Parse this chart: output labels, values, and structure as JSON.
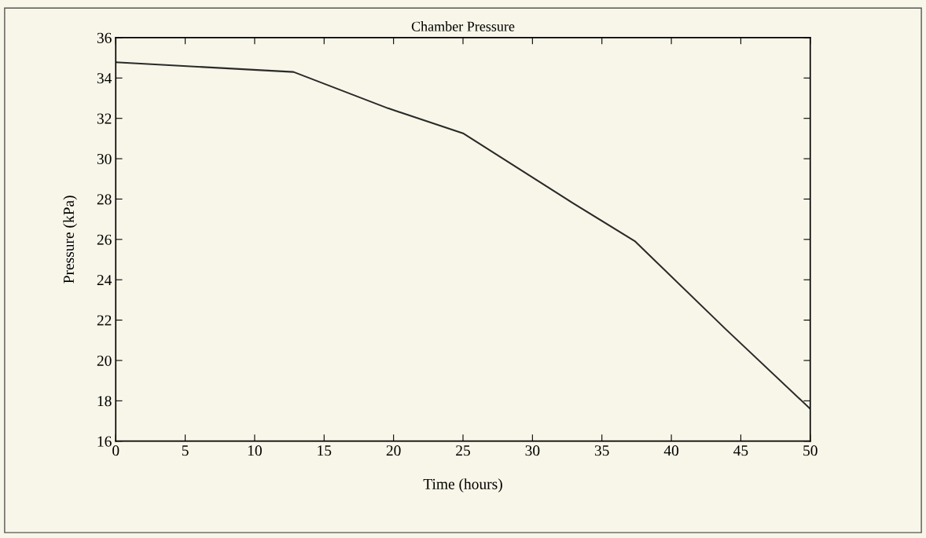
{
  "chart_data": {
    "type": "line",
    "title": "Chamber Pressure",
    "xlabel": "Time (hours)",
    "ylabel": "Pressure (kPa)",
    "x": [
      0,
      12.8,
      19.6,
      25.0,
      32.8,
      37.4,
      43.9,
      50
    ],
    "series": [
      {
        "color": "#2a2a2a",
        "values": [
          34.78,
          34.3,
          32.5,
          31.26,
          27.85,
          25.9,
          21.56,
          17.6
        ]
      }
    ],
    "xlim": [
      0,
      50
    ],
    "xticks": [
      0,
      5,
      10,
      15,
      20,
      25,
      30,
      35,
      40,
      45,
      50
    ],
    "ylim": [
      16,
      36
    ],
    "yticks": [
      16,
      18,
      20,
      22,
      24,
      26,
      28,
      30,
      32,
      34,
      36
    ],
    "grid": false,
    "marker": "none",
    "line_style": "solid"
  }
}
